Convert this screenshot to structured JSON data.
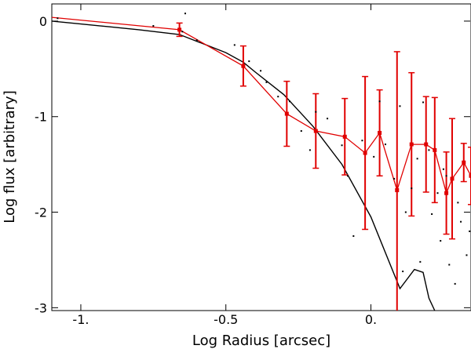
{
  "chart_data": {
    "type": "line",
    "title": "",
    "xlabel": "Log Radius [arcsec]",
    "ylabel": "Log flux [arbitrary]",
    "xlim": [
      -1.1,
      0.345
    ],
    "ylim": [
      -3.03,
      0.18
    ],
    "grid": false,
    "x_ticks": [
      -1.0,
      -0.5,
      0.0
    ],
    "x_tick_labels": [
      "-1.",
      "-0.5",
      "0."
    ],
    "y_ticks": [
      0,
      -1,
      -2,
      -3
    ],
    "y_tick_labels": [
      "0",
      "-1",
      "-2",
      "-3"
    ],
    "colors": {
      "model": "#000000",
      "binned": "#e00000",
      "scatter": "#000000"
    },
    "series": [
      {
        "kind": "line",
        "x": [
          -1.1,
          -1.0,
          -0.9,
          -0.8,
          -0.66,
          -0.5,
          -0.44,
          -0.4,
          -0.3,
          -0.2,
          -0.1,
          0.0,
          0.1,
          0.15,
          0.18,
          0.2,
          0.22
        ],
        "y": [
          0.0,
          -0.03,
          -0.06,
          -0.09,
          -0.14,
          -0.33,
          -0.43,
          -0.53,
          -0.77,
          -1.1,
          -1.5,
          -2.05,
          -2.8,
          -2.6,
          -2.63,
          -2.9,
          -3.03
        ]
      },
      {
        "kind": "errorbar_line",
        "x": [
          -1.1,
          -0.66,
          -0.44,
          -0.29,
          -0.19,
          -0.09,
          -0.02,
          0.03,
          0.09,
          0.14,
          0.19,
          0.22,
          0.26,
          0.28,
          0.32,
          0.345
        ],
        "y": [
          0.04,
          -0.09,
          -0.47,
          -0.97,
          -1.15,
          -1.21,
          -1.38,
          -1.17,
          -1.77,
          -1.29,
          -1.29,
          -1.35,
          -1.8,
          -1.65,
          -1.48,
          -1.62
        ],
        "err": [
          0,
          0.07,
          0.21,
          0.34,
          0.39,
          0.4,
          0.8,
          0.45,
          1.45,
          0.75,
          0.5,
          0.55,
          0.43,
          0.63,
          0.2,
          0.3
        ]
      },
      {
        "kind": "scatter",
        "x": [
          -1.08,
          -0.75,
          -0.65,
          -0.64,
          -0.6,
          -0.47,
          -0.42,
          -0.38,
          -0.36,
          -0.32,
          -0.28,
          -0.24,
          -0.21,
          -0.19,
          -0.15,
          -0.1,
          -0.08,
          -0.03,
          0.01,
          0.03,
          0.05,
          0.08,
          0.1,
          0.11,
          0.14,
          0.16,
          0.18,
          0.2,
          0.21,
          0.23,
          0.24,
          0.26,
          0.27,
          0.29,
          0.3,
          0.31,
          0.33,
          0.34,
          -0.06,
          0.12,
          0.17,
          0.25
        ],
        "y": [
          0.03,
          -0.05,
          -0.11,
          0.08,
          -0.2,
          -0.25,
          -0.42,
          -0.52,
          -0.64,
          -0.79,
          -0.84,
          -1.15,
          -1.35,
          -0.95,
          -1.02,
          -1.3,
          -1.62,
          -1.25,
          -1.42,
          -0.84,
          -1.29,
          -1.65,
          -0.89,
          -2.62,
          -1.75,
          -1.44,
          -0.85,
          -1.35,
          -2.02,
          -1.8,
          -2.3,
          -1.62,
          -2.55,
          -2.75,
          -1.9,
          -2.1,
          -2.45,
          -2.2,
          -2.25,
          -2.0,
          -2.52,
          -1.55
        ]
      }
    ]
  }
}
